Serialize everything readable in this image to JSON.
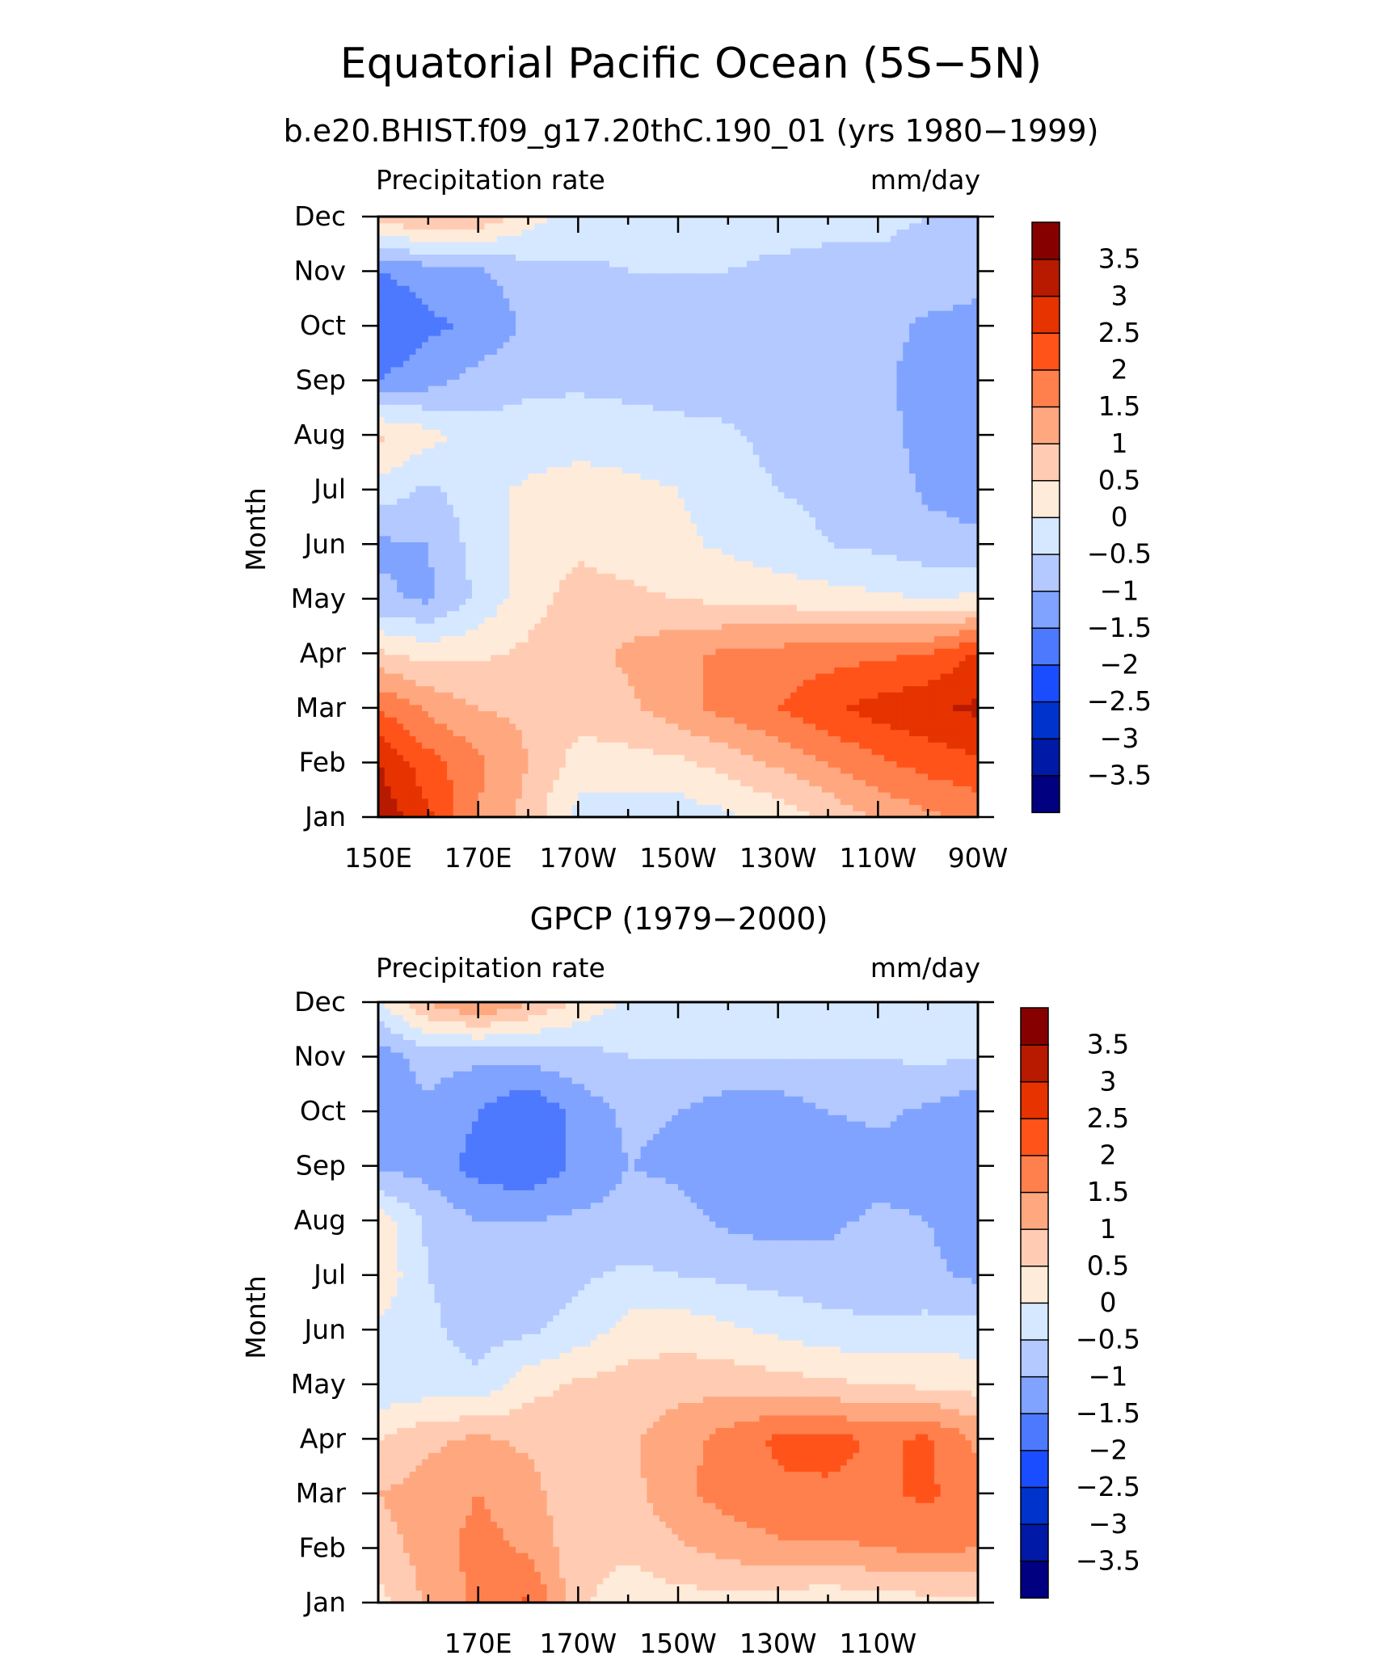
{
  "figure": {
    "title": "Equatorial Pacific Ocean (5S−5N)"
  },
  "colors": {
    "levels": [
      "#000080",
      "#0019a6",
      "#0033cc",
      "#1a4dff",
      "#4d79ff",
      "#80a3ff",
      "#b3c9ff",
      "#d6e8ff",
      "#ffebd9",
      "#ffccb3",
      "#ffa880",
      "#ff804d",
      "#ff531a",
      "#e63300",
      "#b81a00",
      "#870000"
    ]
  },
  "chart_data": [
    {
      "type": "heatmap",
      "title": "b.e20.BHIST.f09_g17.20thC.190_01 (yrs 1980−1999)",
      "left_label": "Precipitation rate",
      "right_label": "mm/day",
      "ylabel": "Month",
      "x_ticks": [
        "150E",
        "170E",
        "170W",
        "150W",
        "130W",
        "110W",
        "90W"
      ],
      "y_ticks": [
        "Jan",
        "Feb",
        "Mar",
        "Apr",
        "May",
        "Jun",
        "Jul",
        "Aug",
        "Sep",
        "Oct",
        "Nov",
        "Dec"
      ],
      "x": [
        150,
        160,
        170,
        180,
        190,
        200,
        210,
        220,
        230,
        240,
        250,
        260,
        270
      ],
      "colorbar": {
        "min": -4,
        "max": 4,
        "step": 0.5,
        "labels": [
          "3.5",
          "3",
          "2.5",
          "2",
          "1.5",
          "1",
          "0.5",
          "0",
          "−0.5",
          "−1",
          "−1.5",
          "−2",
          "−2.5",
          "−3",
          "−3.5"
        ]
      },
      "z": [
        [
          3.4,
          2.6,
          1.5,
          0.8,
          -0.2,
          -0.3,
          -0.3,
          -0.1,
          0.2,
          0.6,
          1.1,
          1.4,
          1.6
        ],
        [
          3.0,
          2.2,
          1.6,
          1.0,
          0.3,
          0.3,
          0.4,
          0.7,
          1.1,
          1.5,
          1.9,
          2.2,
          2.4
        ],
        [
          2.0,
          1.4,
          1.0,
          0.9,
          0.7,
          0.9,
          1.3,
          1.7,
          2.0,
          2.4,
          2.7,
          2.9,
          3.1
        ],
        [
          0.6,
          0.3,
          0.4,
          0.6,
          0.8,
          1.1,
          1.4,
          1.6,
          1.7,
          1.8,
          1.9,
          2.0,
          2.6
        ],
        [
          -0.9,
          -1.1,
          -0.4,
          0.3,
          0.7,
          0.6,
          0.5,
          0.4,
          0.3,
          0.2,
          0.1,
          0.0,
          0.1
        ],
        [
          -1.1,
          -1.0,
          -0.3,
          0.2,
          0.4,
          0.3,
          0.1,
          -0.1,
          -0.3,
          -0.5,
          -0.6,
          -0.8,
          -0.9
        ],
        [
          -0.2,
          -0.6,
          -0.2,
          0.1,
          0.2,
          0.1,
          0.0,
          -0.2,
          -0.5,
          -0.6,
          -0.7,
          -1.1,
          -1.2
        ],
        [
          0.6,
          0.2,
          -0.3,
          -0.3,
          -0.2,
          -0.2,
          -0.3,
          -0.4,
          -0.7,
          -0.8,
          -0.8,
          -1.2,
          -1.3
        ],
        [
          -1.5,
          -1.2,
          -0.8,
          -0.6,
          -0.6,
          -0.7,
          -0.8,
          -0.8,
          -0.9,
          -0.9,
          -0.9,
          -1.2,
          -1.3
        ],
        [
          -2.0,
          -1.6,
          -1.4,
          -0.9,
          -0.7,
          -0.6,
          -0.6,
          -0.6,
          -0.6,
          -0.7,
          -0.8,
          -1.1,
          -1.1
        ],
        [
          -1.5,
          -1.3,
          -1.1,
          -0.7,
          -0.6,
          -0.5,
          -0.5,
          -0.5,
          -0.6,
          -0.6,
          -0.6,
          -0.7,
          -0.9
        ],
        [
          0.7,
          1.1,
          0.9,
          0.2,
          -0.2,
          -0.3,
          -0.3,
          -0.3,
          -0.3,
          -0.4,
          -0.4,
          -0.5,
          -0.6
        ]
      ]
    },
    {
      "type": "heatmap",
      "title": "GPCP (1979−2000)",
      "left_label": "Precipitation rate",
      "right_label": "mm/day",
      "ylabel": "Month",
      "x_ticks": [
        "",
        "170E",
        "170W",
        "150W",
        "130W",
        "110W",
        ""
      ],
      "y_ticks": [
        "Jan",
        "Feb",
        "Mar",
        "Apr",
        "May",
        "Jun",
        "Jul",
        "Aug",
        "Sep",
        "Oct",
        "Nov",
        "Dec"
      ],
      "x": [
        150,
        160,
        170,
        180,
        190,
        200,
        210,
        220,
        230,
        240,
        250,
        260,
        270
      ],
      "colorbar": {
        "min": -4,
        "max": 4,
        "step": 0.5,
        "labels": [
          "3.5",
          "3",
          "2.5",
          "2",
          "1.5",
          "1",
          "0.5",
          "0",
          "−0.5",
          "−1",
          "−1.5",
          "−2",
          "−2.5",
          "−3",
          "−3.5"
        ]
      },
      "z": [
        [
          0.3,
          1.1,
          1.6,
          2.1,
          0.6,
          0.2,
          0.3,
          0.3,
          0.2,
          0.1,
          0.2,
          0.3,
          0.4
        ],
        [
          0.8,
          1.2,
          1.7,
          1.4,
          0.7,
          0.6,
          0.9,
          1.2,
          1.4,
          1.4,
          1.5,
          1.6,
          1.5
        ],
        [
          1.0,
          1.2,
          1.5,
          1.2,
          0.6,
          0.8,
          1.4,
          1.7,
          1.9,
          1.9,
          1.9,
          2.1,
          1.6
        ],
        [
          0.5,
          0.9,
          1.1,
          0.9,
          0.8,
          0.9,
          1.3,
          1.7,
          2.1,
          2.2,
          1.9,
          2.1,
          1.4
        ],
        [
          -0.4,
          -0.3,
          -0.4,
          0.3,
          0.6,
          0.7,
          0.8,
          0.8,
          0.7,
          0.6,
          0.5,
          0.4,
          0.3
        ],
        [
          -0.1,
          -0.4,
          -0.7,
          -0.6,
          -0.3,
          0.2,
          0.3,
          0.1,
          -0.1,
          -0.3,
          -0.4,
          -0.3,
          -0.3
        ],
        [
          0.4,
          -0.5,
          -0.7,
          -0.8,
          -0.6,
          -0.4,
          -0.5,
          -0.6,
          -0.7,
          -0.8,
          -0.8,
          -0.9,
          -1.1
        ],
        [
          0.3,
          -0.6,
          -1.0,
          -1.0,
          -0.9,
          -0.8,
          -0.8,
          -1.1,
          -1.2,
          -1.1,
          -0.9,
          -1.0,
          -1.3
        ],
        [
          -1.1,
          -1.2,
          -1.7,
          -1.9,
          -1.4,
          -1.0,
          -1.1,
          -1.4,
          -1.4,
          -1.4,
          -1.2,
          -1.2,
          -1.3
        ],
        [
          -1.3,
          -1.1,
          -1.5,
          -2.0,
          -1.3,
          -0.9,
          -1.0,
          -1.3,
          -1.3,
          -1.0,
          -0.9,
          -1.1,
          -1.4
        ],
        [
          -1.3,
          -0.8,
          -0.9,
          -0.8,
          -0.7,
          -0.5,
          -0.5,
          -0.5,
          -0.5,
          -0.5,
          -0.5,
          -0.4,
          -0.5
        ],
        [
          -0.1,
          1.0,
          1.6,
          1.0,
          0.4,
          -0.1,
          -0.3,
          -0.3,
          -0.3,
          -0.3,
          -0.3,
          -0.3,
          -0.3
        ]
      ]
    }
  ]
}
